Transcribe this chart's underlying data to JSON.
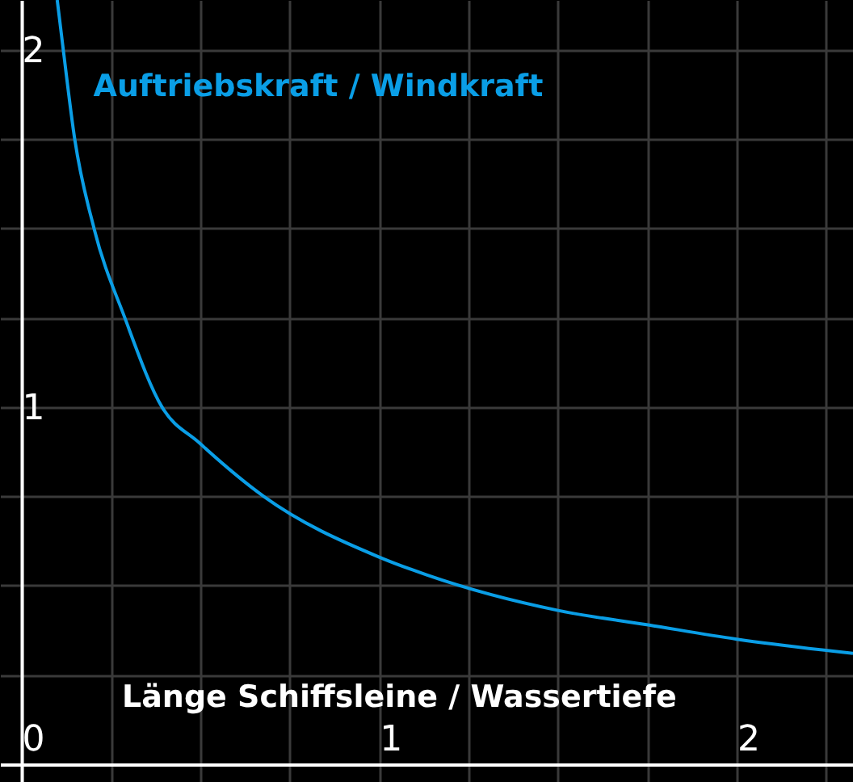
{
  "chart_data": {
    "type": "line",
    "xlabel": "Länge Schiffsleine / Wassertiefe",
    "ylabel": "Auftriebskraft / Windkraft",
    "x": [
      0.1,
      0.117,
      0.149,
      0.203,
      0.289,
      0.393,
      0.497,
      0.677,
      1.0,
      1.133,
      1.503,
      1.752,
      2.0,
      2.325
    ],
    "series": [
      {
        "color": "#0a9ee6",
        "values": [
          2.14,
          2.0,
          1.75,
          1.5,
          1.25,
          1.0,
          0.9,
          0.75,
          0.58,
          0.53,
          0.43,
          0.39,
          0.35,
          0.31
        ]
      }
    ],
    "xlim": [
      -0.06,
      2.325
    ],
    "ylim": [
      -0.05,
      2.14
    ],
    "xticks": [
      0,
      {
        "value": 0.25,
        "label": null
      },
      {
        "value": 0.5,
        "label": null
      },
      {
        "value": 0.75,
        "label": null
      },
      1,
      {
        "value": 1.25,
        "label": null
      },
      {
        "value": 1.5,
        "label": null
      },
      {
        "value": 1.75,
        "label": null
      },
      2,
      {
        "value": 2.25,
        "label": null
      }
    ],
    "yticks": [
      {
        "value": 0,
        "label": null
      },
      {
        "value": 0.25,
        "label": null
      },
      {
        "value": 0.5,
        "label": null
      },
      {
        "value": 0.75,
        "label": null
      },
      1,
      {
        "value": 1.25,
        "label": null
      },
      {
        "value": 1.5,
        "label": null
      },
      {
        "value": 1.75,
        "label": null
      },
      2
    ],
    "grid": true,
    "marker": "none",
    "line_style": "solid"
  }
}
